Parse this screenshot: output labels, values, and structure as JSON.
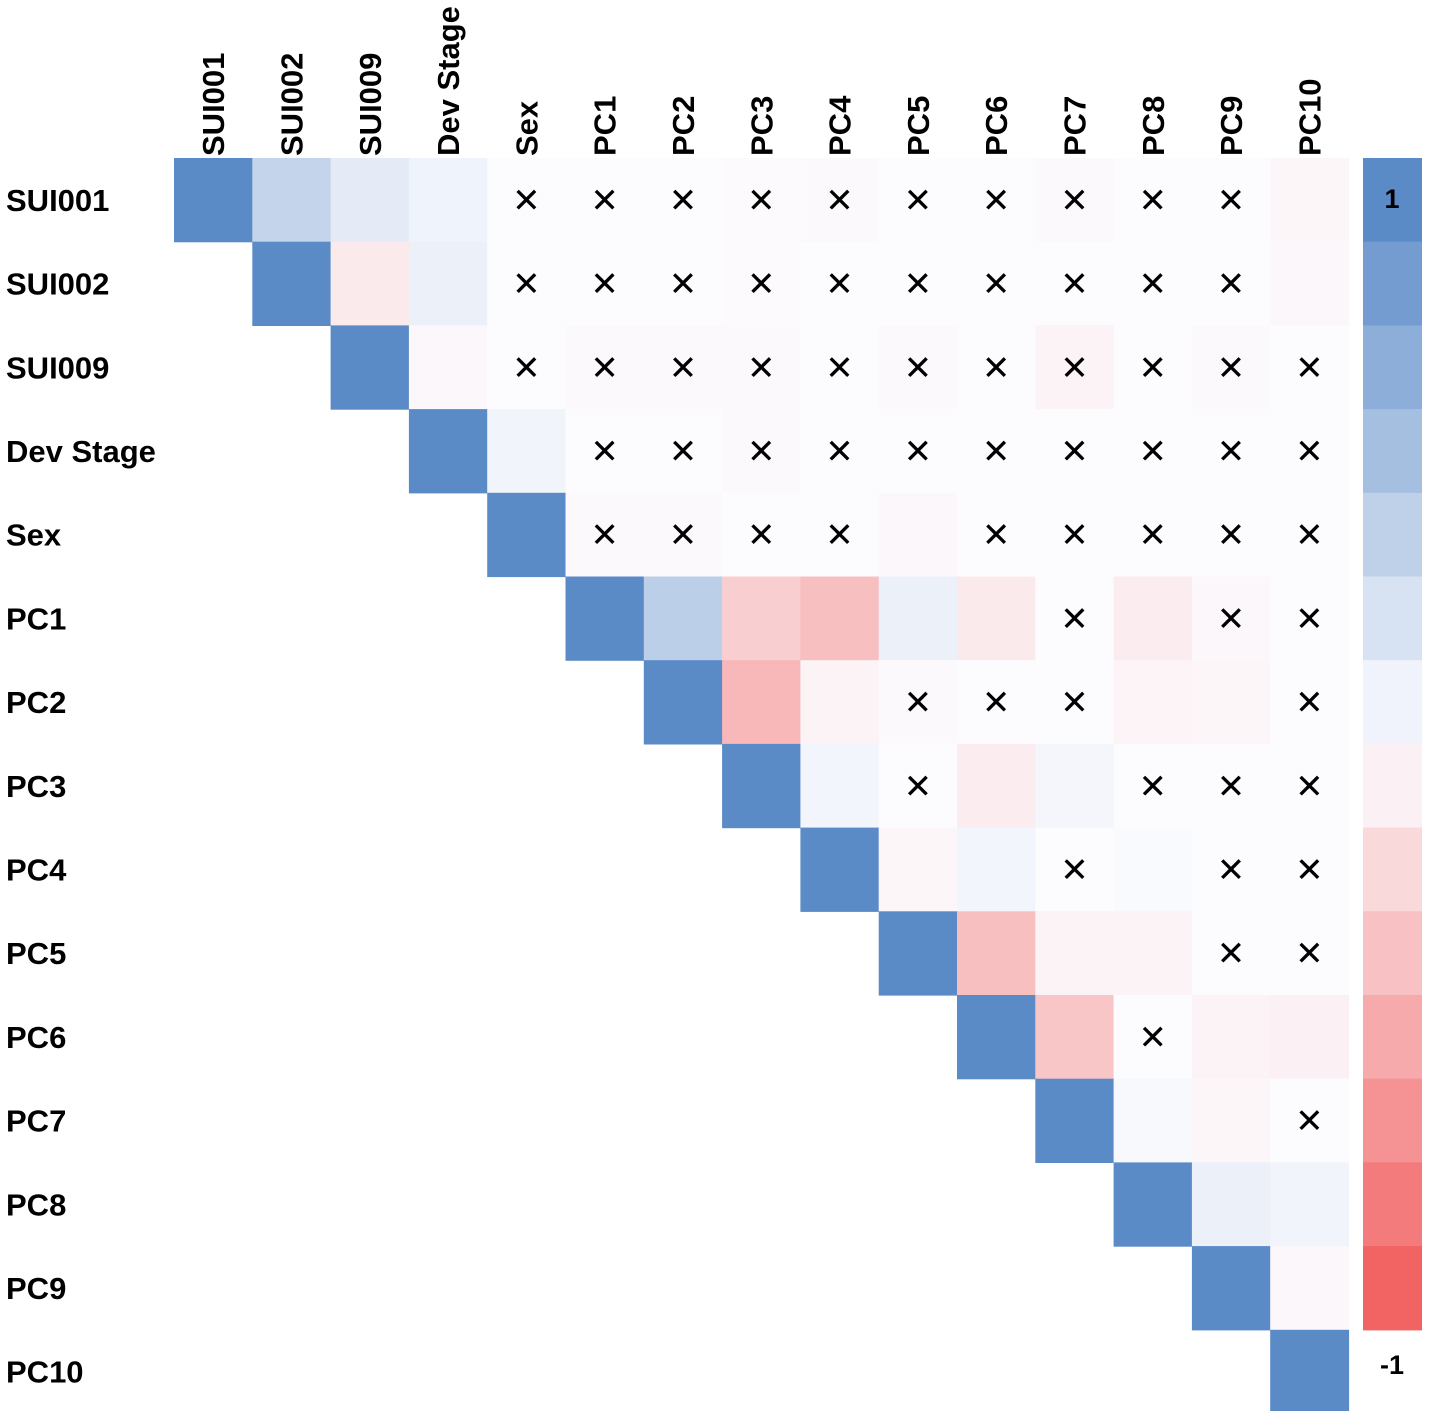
{
  "chart_data": {
    "type": "heatmap",
    "title": "",
    "variables": [
      "SUI001",
      "SUI002",
      "SUI009",
      "Dev Stage",
      "Sex",
      "PC1",
      "PC2",
      "PC3",
      "PC4",
      "PC5",
      "PC6",
      "PC7",
      "PC8",
      "PC9",
      "PC10"
    ],
    "value_range": [
      -1,
      1
    ],
    "color_low": "#f26363",
    "color_mid": "#fcfcff",
    "color_high": "#5b8bc7",
    "legend_max_label": "1",
    "legend_min_label": "-1",
    "insignificant_marker": "✕",
    "upper_triangle_correlations": [
      [
        1,
        0.35,
        0.15,
        0.08,
        0.0,
        0.0,
        0.0,
        -0.01,
        -0.02,
        0.0,
        0.0,
        -0.02,
        0.0,
        0.0,
        -0.04
      ],
      [
        null,
        1,
        -0.12,
        0.1,
        0.0,
        0.0,
        0.0,
        -0.01,
        0.0,
        0.0,
        0.0,
        0.0,
        0.0,
        0.0,
        -0.03
      ],
      [
        null,
        null,
        1,
        -0.03,
        0.0,
        -0.02,
        -0.02,
        -0.02,
        0.0,
        -0.02,
        0.0,
        -0.06,
        0.0,
        -0.02,
        0.0
      ],
      [
        null,
        null,
        null,
        1,
        0.07,
        0.0,
        0.0,
        -0.02,
        0.0,
        0.0,
        0.0,
        0.0,
        0.0,
        0.0,
        0.0
      ],
      [
        null,
        null,
        null,
        null,
        1,
        -0.02,
        -0.02,
        0.0,
        0.0,
        -0.03,
        0.0,
        0.0,
        0.0,
        0.0,
        0.0
      ],
      [
        null,
        null,
        null,
        null,
        null,
        1,
        0.4,
        -0.3,
        -0.4,
        0.1,
        -0.12,
        0.0,
        -0.1,
        -0.03,
        0.0
      ],
      [
        null,
        null,
        null,
        null,
        null,
        null,
        1,
        -0.45,
        -0.06,
        -0.02,
        0.0,
        0.0,
        -0.05,
        -0.04,
        0.0
      ],
      [
        null,
        null,
        null,
        null,
        null,
        null,
        null,
        1,
        0.06,
        0.0,
        -0.1,
        0.05,
        0.0,
        0.0,
        0.0
      ],
      [
        null,
        null,
        null,
        null,
        null,
        null,
        null,
        null,
        1,
        -0.04,
        0.06,
        0.0,
        0.02,
        0.0,
        0.0
      ],
      [
        null,
        null,
        null,
        null,
        null,
        null,
        null,
        null,
        null,
        1,
        -0.4,
        -0.06,
        -0.06,
        0.0,
        0.0
      ],
      [
        null,
        null,
        null,
        null,
        null,
        null,
        null,
        null,
        null,
        null,
        1,
        -0.35,
        0.0,
        -0.06,
        -0.08
      ],
      [
        null,
        null,
        null,
        null,
        null,
        null,
        null,
        null,
        null,
        null,
        null,
        1,
        0.03,
        -0.04,
        0.0
      ],
      [
        null,
        null,
        null,
        null,
        null,
        null,
        null,
        null,
        null,
        null,
        null,
        null,
        1,
        0.1,
        0.07
      ],
      [
        null,
        null,
        null,
        null,
        null,
        null,
        null,
        null,
        null,
        null,
        null,
        null,
        null,
        1,
        -0.03
      ],
      [
        null,
        null,
        null,
        null,
        null,
        null,
        null,
        null,
        null,
        null,
        null,
        null,
        null,
        null,
        1
      ]
    ],
    "insignificant_cells": [
      [
        0,
        4
      ],
      [
        0,
        5
      ],
      [
        0,
        6
      ],
      [
        0,
        7
      ],
      [
        0,
        8
      ],
      [
        0,
        9
      ],
      [
        0,
        10
      ],
      [
        0,
        11
      ],
      [
        0,
        12
      ],
      [
        0,
        13
      ],
      [
        1,
        4
      ],
      [
        1,
        5
      ],
      [
        1,
        6
      ],
      [
        1,
        7
      ],
      [
        1,
        8
      ],
      [
        1,
        9
      ],
      [
        1,
        10
      ],
      [
        1,
        11
      ],
      [
        1,
        12
      ],
      [
        1,
        13
      ],
      [
        2,
        4
      ],
      [
        2,
        5
      ],
      [
        2,
        6
      ],
      [
        2,
        7
      ],
      [
        2,
        8
      ],
      [
        2,
        9
      ],
      [
        2,
        10
      ],
      [
        2,
        11
      ],
      [
        2,
        12
      ],
      [
        2,
        13
      ],
      [
        2,
        14
      ],
      [
        3,
        5
      ],
      [
        3,
        6
      ],
      [
        3,
        7
      ],
      [
        3,
        8
      ],
      [
        3,
        9
      ],
      [
        3,
        10
      ],
      [
        3,
        11
      ],
      [
        3,
        12
      ],
      [
        3,
        13
      ],
      [
        3,
        14
      ],
      [
        4,
        5
      ],
      [
        4,
        6
      ],
      [
        4,
        7
      ],
      [
        4,
        8
      ],
      [
        4,
        10
      ],
      [
        4,
        11
      ],
      [
        4,
        12
      ],
      [
        4,
        13
      ],
      [
        4,
        14
      ],
      [
        5,
        11
      ],
      [
        5,
        13
      ],
      [
        5,
        14
      ],
      [
        6,
        9
      ],
      [
        6,
        10
      ],
      [
        6,
        11
      ],
      [
        6,
        14
      ],
      [
        7,
        9
      ],
      [
        7,
        12
      ],
      [
        7,
        13
      ],
      [
        7,
        14
      ],
      [
        8,
        11
      ],
      [
        8,
        13
      ],
      [
        8,
        14
      ],
      [
        9,
        13
      ],
      [
        9,
        14
      ],
      [
        10,
        12
      ],
      [
        11,
        14
      ]
    ]
  }
}
